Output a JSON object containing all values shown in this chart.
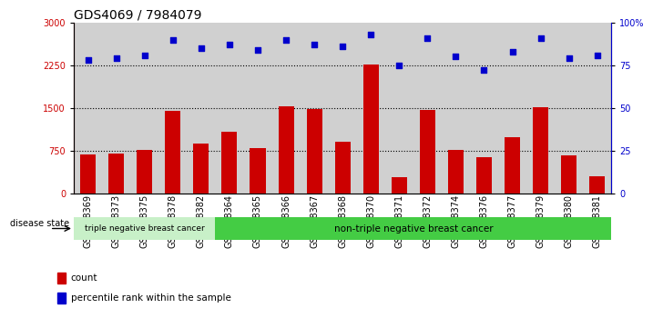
{
  "title": "GDS4069 / 7984079",
  "samples": [
    "GSM678369",
    "GSM678373",
    "GSM678375",
    "GSM678378",
    "GSM678382",
    "GSM678364",
    "GSM678365",
    "GSM678366",
    "GSM678367",
    "GSM678368",
    "GSM678370",
    "GSM678371",
    "GSM678372",
    "GSM678374",
    "GSM678376",
    "GSM678377",
    "GSM678379",
    "GSM678380",
    "GSM678381"
  ],
  "counts": [
    680,
    690,
    760,
    1450,
    870,
    1080,
    800,
    1530,
    1480,
    910,
    2260,
    280,
    1470,
    760,
    640,
    980,
    1510,
    660,
    300
  ],
  "percentiles": [
    78,
    79,
    81,
    90,
    85,
    87,
    84,
    90,
    87,
    86,
    93,
    75,
    91,
    80,
    72,
    83,
    91,
    79,
    81
  ],
  "n_triple_neg": 5,
  "left_ylim": [
    0,
    3000
  ],
  "right_ylim": [
    0,
    100
  ],
  "left_yticks": [
    0,
    750,
    1500,
    2250,
    3000
  ],
  "right_yticks": [
    0,
    25,
    50,
    75,
    100
  ],
  "right_yticklabels": [
    "0",
    "25",
    "50",
    "75",
    "100%"
  ],
  "bar_color": "#cc0000",
  "dot_color": "#0000cc",
  "col_bg_color": "#d0d0d0",
  "triple_neg_color": "#c8f0c8",
  "non_triple_neg_color": "#44cc44",
  "group_label_triple": "triple negative breast cancer",
  "group_label_non_triple": "non-triple negative breast cancer",
  "disease_state_label": "disease state",
  "legend_count": "count",
  "legend_percentile": "percentile rank within the sample",
  "dotted_line_color": "#000000",
  "title_fontsize": 10,
  "tick_fontsize": 7,
  "label_fontsize": 7.5,
  "bar_width": 0.55
}
